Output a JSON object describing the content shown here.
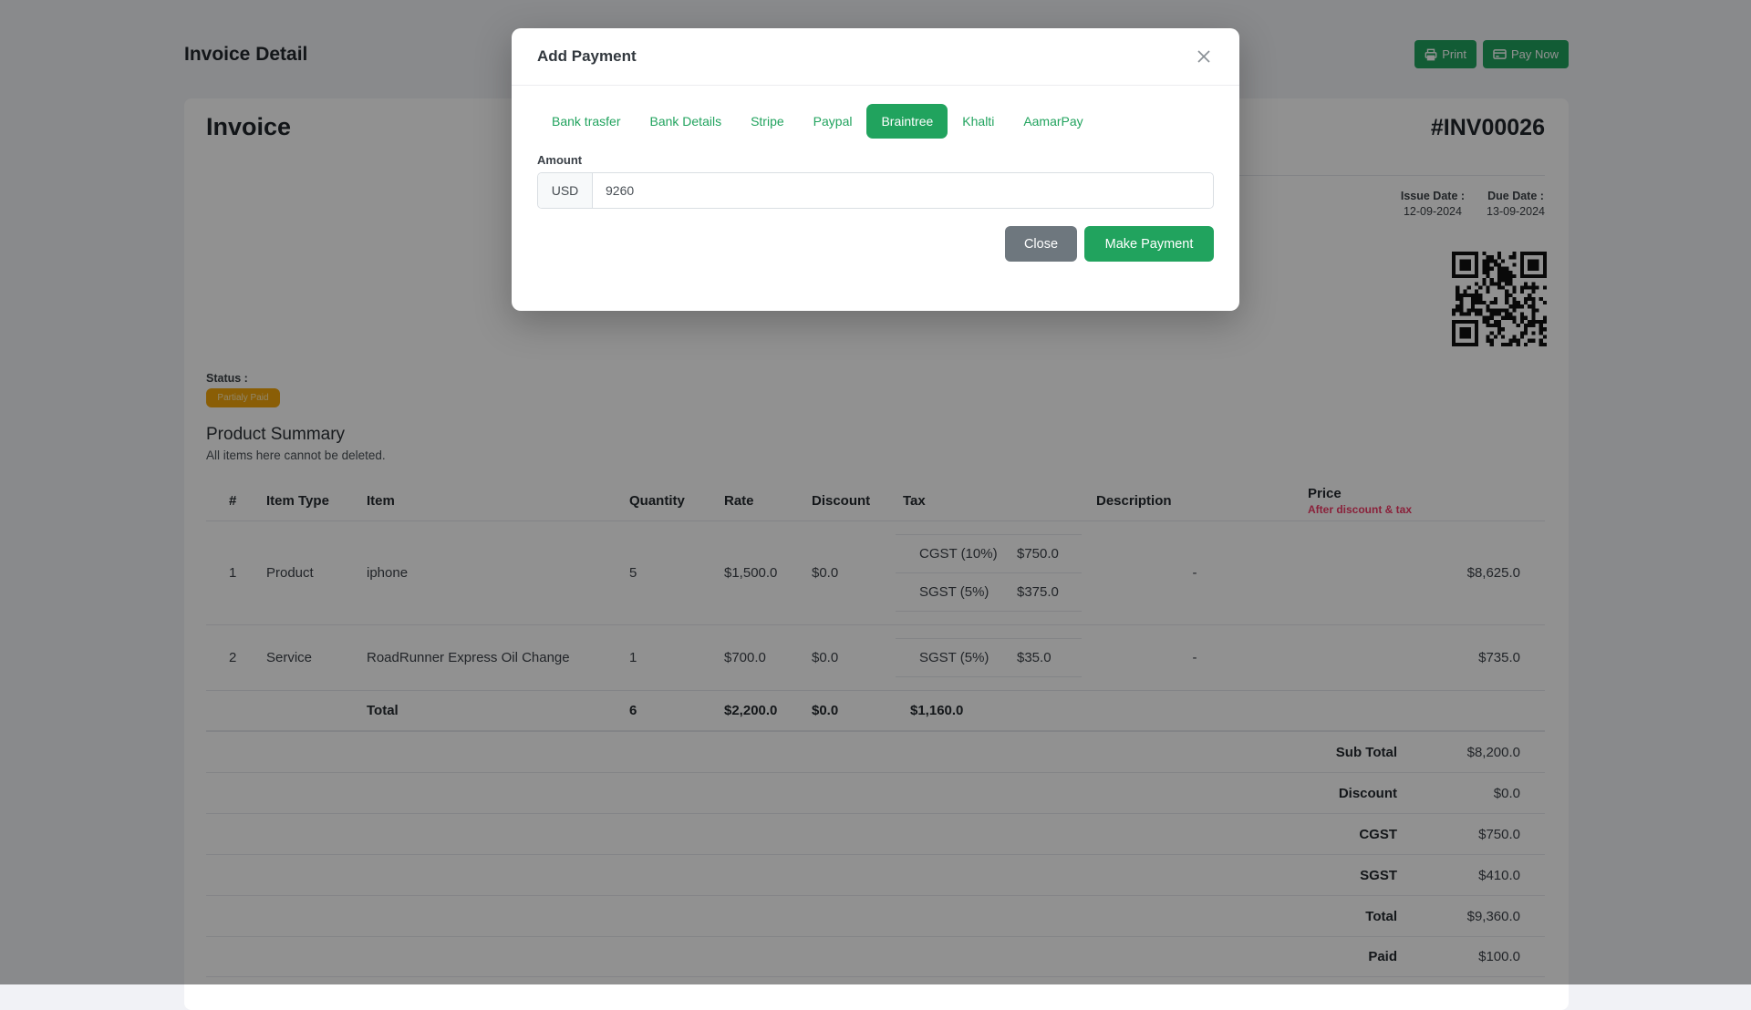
{
  "page": {
    "title": "Invoice Detail",
    "actions": {
      "print": "Print",
      "pay_now": "Pay Now"
    }
  },
  "invoice": {
    "heading": "Invoice",
    "number": "#INV00026",
    "issue_date_label": "Issue Date :",
    "issue_date": "12-09-2024",
    "due_date_label": "Due Date :",
    "due_date": "13-09-2024",
    "status_label": "Status :",
    "status_badge": "Partialy Paid",
    "summary_title": "Product Summary",
    "summary_note": "All items here cannot be deleted."
  },
  "table": {
    "headers": {
      "num": "#",
      "item_type": "Item Type",
      "item": "Item",
      "quantity": "Quantity",
      "rate": "Rate",
      "discount": "Discount",
      "tax": "Tax",
      "description": "Description",
      "price": "Price",
      "price_sub": "After discount & tax"
    },
    "rows": [
      {
        "num": "1",
        "type": "Product",
        "item": "iphone",
        "quantity": "5",
        "rate": "$1,500.0",
        "discount": "$0.0",
        "taxes": [
          {
            "name": "CGST (10%)",
            "value": "$750.0"
          },
          {
            "name": "SGST (5%)",
            "value": "$375.0"
          }
        ],
        "description": "-",
        "price": "$8,625.0"
      },
      {
        "num": "2",
        "type": "Service",
        "item": "RoadRunner Express Oil Change",
        "quantity": "1",
        "rate": "$700.0",
        "discount": "$0.0",
        "taxes": [
          {
            "name": "SGST (5%)",
            "value": "$35.0"
          }
        ],
        "description": "-",
        "price": "$735.0"
      }
    ],
    "total_row": {
      "label": "Total",
      "quantity": "6",
      "rate": "$2,200.0",
      "discount": "$0.0",
      "tax": "$1,160.0"
    },
    "summary_rows": [
      {
        "label": "Sub Total",
        "value": "$8,200.0"
      },
      {
        "label": "Discount",
        "value": "$0.0"
      },
      {
        "label": "CGST",
        "value": "$750.0"
      },
      {
        "label": "SGST",
        "value": "$410.0"
      },
      {
        "label": "Total",
        "value": "$9,360.0"
      },
      {
        "label": "Paid",
        "value": "$100.0"
      }
    ]
  },
  "modal": {
    "title": "Add Payment",
    "tabs": [
      {
        "label": "Bank trasfer",
        "active": false
      },
      {
        "label": "Bank Details",
        "active": false
      },
      {
        "label": "Stripe",
        "active": false
      },
      {
        "label": "Paypal",
        "active": false
      },
      {
        "label": "Braintree",
        "active": true
      },
      {
        "label": "Khalti",
        "active": false
      },
      {
        "label": "AamarPay",
        "active": false
      }
    ],
    "amount_label": "Amount",
    "currency": "USD",
    "amount_value": "9260",
    "close_label": "Close",
    "submit_label": "Make Payment"
  },
  "colors": {
    "accent_green": "#21a35e",
    "badge_amber": "#f2a50c",
    "danger_red": "#f23b67",
    "button_gray": "#6e777e"
  }
}
